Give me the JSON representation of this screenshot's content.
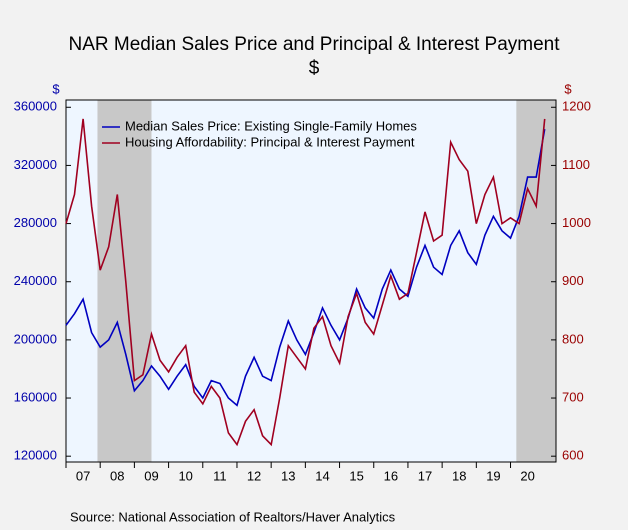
{
  "chart_data": {
    "type": "line",
    "title": "NAR Median Sales Price and Principal & Interest Payment",
    "subtitle": "$",
    "ylabel": "$",
    "y2label": "$",
    "source": "Source:  National Association of Realtors/Haver Analytics",
    "x": [
      2007,
      2007.25,
      2007.5,
      2007.75,
      2008,
      2008.25,
      2008.5,
      2008.75,
      2009,
      2009.25,
      2009.5,
      2009.75,
      2010,
      2010.25,
      2010.5,
      2010.75,
      2011,
      2011.25,
      2011.5,
      2011.75,
      2012,
      2012.25,
      2012.5,
      2012.75,
      2013,
      2013.25,
      2013.5,
      2013.75,
      2014,
      2014.25,
      2014.5,
      2014.75,
      2015,
      2015.25,
      2015.5,
      2015.75,
      2016,
      2016.25,
      2016.5,
      2016.75,
      2017,
      2017.25,
      2017.5,
      2017.75,
      2018,
      2018.25,
      2018.5,
      2018.75,
      2019,
      2019.25,
      2019.5,
      2019.75,
      2020,
      2020.25,
      2020.5,
      2020.75,
      2021
    ],
    "series": [
      {
        "name": "Median Sales Price: Existing Single-Family Homes",
        "color": "#0000c0",
        "values": [
          210000,
          218000,
          228000,
          205000,
          195000,
          200000,
          212000,
          190000,
          165000,
          172000,
          182000,
          175000,
          166000,
          175000,
          183000,
          168000,
          160000,
          172000,
          170000,
          160000,
          155000,
          175000,
          188000,
          175000,
          172000,
          195000,
          213000,
          200000,
          190000,
          205000,
          222000,
          210000,
          200000,
          215000,
          235000,
          222000,
          215000,
          235000,
          248000,
          235000,
          230000,
          250000,
          265000,
          250000,
          245000,
          265000,
          275000,
          260000,
          252000,
          272000,
          285000,
          275000,
          270000,
          285000,
          312000,
          312000,
          345000
        ]
      },
      {
        "name": "Housing Affordability: Principal & Interest Payment",
        "color": "#a00020",
        "axis": "y2",
        "values": [
          1000,
          1050,
          1180,
          1030,
          920,
          960,
          1050,
          900,
          730,
          740,
          810,
          765,
          745,
          770,
          790,
          710,
          690,
          720,
          700,
          640,
          620,
          660,
          680,
          635,
          620,
          700,
          790,
          770,
          750,
          820,
          840,
          790,
          760,
          840,
          880,
          830,
          810,
          860,
          910,
          870,
          880,
          950,
          1020,
          970,
          980,
          1140,
          1110,
          1090,
          1000,
          1050,
          1080,
          1000,
          1010,
          1000,
          1060,
          1030,
          1180
        ]
      }
    ],
    "recessions": [
      [
        2007.92,
        2009.5
      ],
      [
        2020.17,
        2021.33
      ]
    ],
    "xlim": [
      2007,
      2021.33
    ],
    "xticks": [
      {
        "value": 2007,
        "label": "07"
      },
      {
        "value": 2008,
        "label": "08"
      },
      {
        "value": 2009,
        "label": "09"
      },
      {
        "value": 2010,
        "label": "10"
      },
      {
        "value": 2011,
        "label": "11"
      },
      {
        "value": 2012,
        "label": "12"
      },
      {
        "value": 2013,
        "label": "13"
      },
      {
        "value": 2014,
        "label": "14"
      },
      {
        "value": 2015,
        "label": "15"
      },
      {
        "value": 2016,
        "label": "16"
      },
      {
        "value": 2017,
        "label": "17"
      },
      {
        "value": 2018,
        "label": "18"
      },
      {
        "value": 2019,
        "label": "19"
      },
      {
        "value": 2020,
        "label": "20"
      }
    ],
    "ylim": [
      116000,
      365000
    ],
    "yticks": [
      120000,
      160000,
      200000,
      240000,
      280000,
      320000,
      360000
    ],
    "y2lim": [
      590,
      1212.5
    ],
    "y2ticks": [
      600,
      700,
      800,
      900,
      1000,
      1100,
      1200
    ],
    "legend": "upper left"
  }
}
